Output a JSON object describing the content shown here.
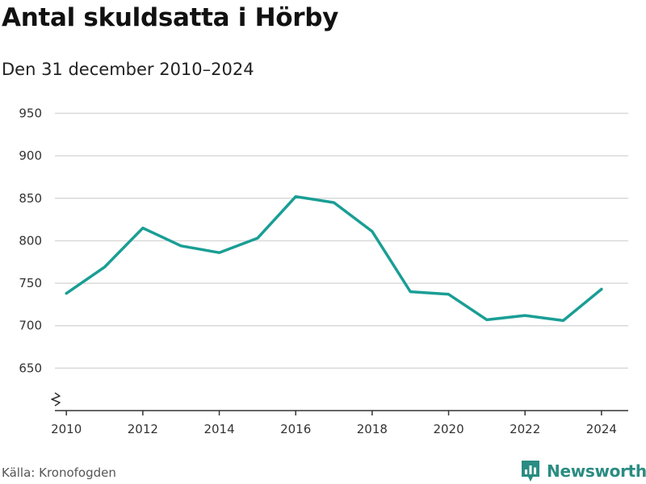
{
  "title": "Antal skuldsatta i Hörby",
  "subtitle": "Den 31 december 2010–2024",
  "source": "Källa: Kronofogden",
  "brand": {
    "name": "Newsworthy",
    "icon": "newsworthy-logo-icon",
    "color": "#2a8c82"
  },
  "chart_data": {
    "type": "line",
    "title": "Antal skuldsatta i Hörby",
    "subtitle": "Den 31 december 2010–2024",
    "xlabel": "",
    "ylabel": "",
    "x": [
      2010,
      2011,
      2012,
      2013,
      2014,
      2015,
      2016,
      2017,
      2018,
      2019,
      2020,
      2021,
      2022,
      2023,
      2024
    ],
    "series": [
      {
        "values": [
          738,
          769,
          815,
          794,
          786,
          803,
          852,
          845,
          811,
          740,
          737,
          707,
          712,
          706,
          743
        ],
        "color": "#1a9e95"
      }
    ],
    "x_ticks": [
      2010,
      2012,
      2014,
      2016,
      2018,
      2020,
      2022,
      2024
    ],
    "y_ticks": [
      650,
      700,
      750,
      800,
      850,
      900,
      950
    ],
    "xlim": [
      2009.7,
      2024.7
    ],
    "ylim": [
      600,
      960
    ],
    "y_axis_break": true,
    "grid": true,
    "gridline_color": "#d9d9d9",
    "axis_color": "#333333"
  }
}
